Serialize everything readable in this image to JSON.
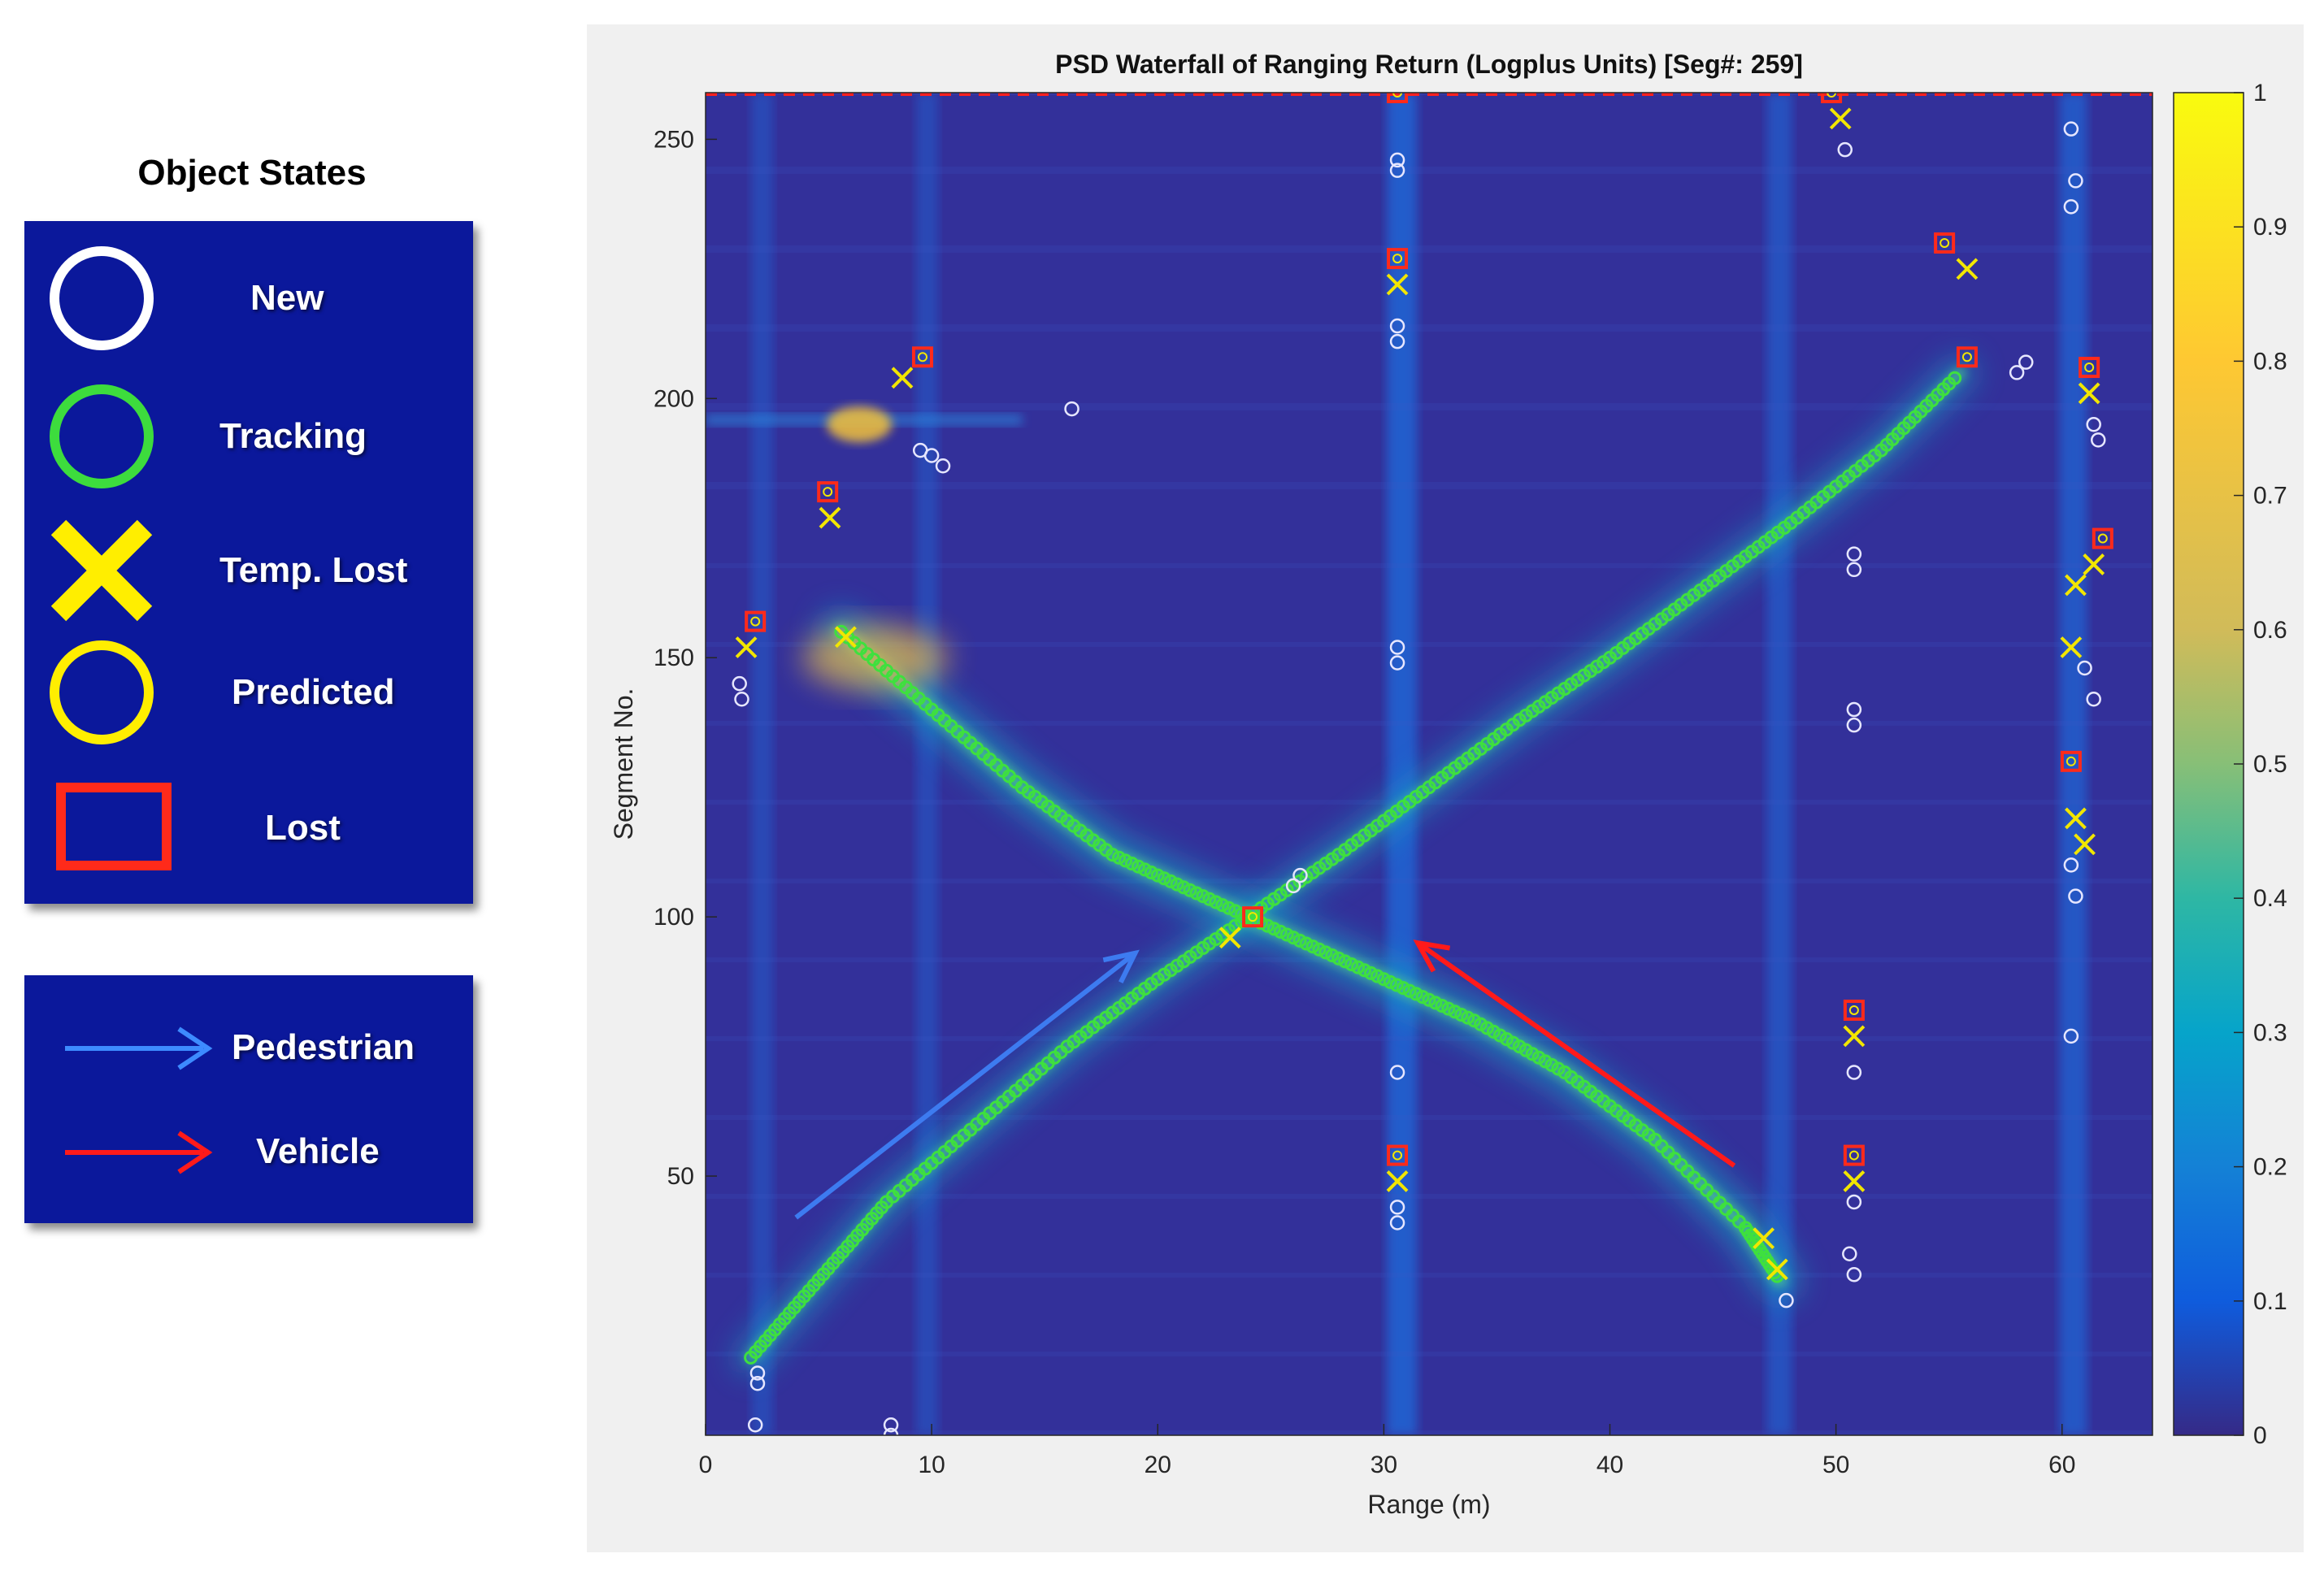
{
  "legend": {
    "title": "Object States",
    "states": [
      {
        "label": "New",
        "icon": "white-circle-icon",
        "color": "#ffffff"
      },
      {
        "label": "Tracking",
        "icon": "green-circle-icon",
        "color": "#3ddc3d"
      },
      {
        "label": "Temp. Lost",
        "icon": "yellow-x-icon",
        "color": "#ffee00"
      },
      {
        "label": "Predicted",
        "icon": "yellow-circle-icon",
        "color": "#ffee00"
      },
      {
        "label": "Lost",
        "icon": "red-square-icon",
        "color": "#ff2a1a"
      }
    ],
    "objects": [
      {
        "label": "Pedestrian",
        "icon": "blue-arrow-icon",
        "color": "#3d8bff"
      },
      {
        "label": "Vehicle",
        "icon": "red-arrow-icon",
        "color": "#ff1a1a"
      }
    ],
    "box_color": "#0b189b"
  },
  "chart_data": {
    "type": "heatmap",
    "title": "PSD Waterfall of Ranging Return (Logplus Units) [Seg#: 259]",
    "xlabel": "Range (m)",
    "ylabel": "Segment No.",
    "xlim": [
      0,
      64
    ],
    "ylim": [
      0,
      259
    ],
    "xticks": [
      0,
      10,
      20,
      30,
      40,
      50,
      60
    ],
    "yticks": [
      50,
      100,
      150,
      200,
      250
    ],
    "colorbar": {
      "colormap": "parula",
      "range": [
        0,
        1
      ],
      "ticks": [
        0,
        0.1,
        0.2,
        0.3,
        0.4,
        0.5,
        0.6,
        0.7,
        0.8,
        0.9,
        1
      ],
      "tick_labels": [
        "0",
        "0.1",
        "0.2",
        "0.3",
        "0.4",
        "0.5",
        "0.6",
        "0.7",
        "0.8",
        "0.9",
        "1"
      ]
    },
    "current_segment_line": {
      "y": 259,
      "color": "#ff2020",
      "style": "dashed"
    },
    "pedestrian_track": {
      "x": [
        2,
        5,
        8,
        12,
        16,
        20,
        24,
        28,
        32,
        36,
        40,
        44,
        48,
        52,
        55.5
      ],
      "y": [
        15,
        30,
        45,
        60,
        75,
        88,
        100,
        112,
        125,
        138,
        150,
        163,
        176,
        190,
        205
      ]
    },
    "vehicle_track": {
      "x": [
        6,
        10,
        14,
        18,
        22,
        26,
        30,
        34,
        38,
        42,
        46,
        47.5
      ],
      "y": [
        155,
        140,
        125,
        112,
        104,
        96,
        88,
        80,
        70,
        57,
        40,
        30
      ]
    },
    "vertical_bands": [
      {
        "x": 30.8,
        "intensity": 0.25
      },
      {
        "x": 47.5,
        "intensity": 0.15
      },
      {
        "x": 60.5,
        "intensity": 0.2
      },
      {
        "x": 9.8,
        "intensity": 0.08
      },
      {
        "x": 2.5,
        "intensity": 0.08
      }
    ],
    "annotations": [
      {
        "type": "arrow",
        "object": "Pedestrian",
        "from": [
          4,
          42
        ],
        "to": [
          19,
          93
        ],
        "color": "#3d7bf0"
      },
      {
        "type": "arrow",
        "object": "Vehicle",
        "from": [
          45.5,
          52
        ],
        "to": [
          31.5,
          95
        ],
        "color": "#ff1a1a"
      }
    ],
    "lost_markers": [
      [
        2.2,
        157
      ],
      [
        5.4,
        182
      ],
      [
        9.6,
        208
      ],
      [
        30.6,
        227
      ],
      [
        30.6,
        54
      ],
      [
        30.6,
        259
      ],
      [
        49.8,
        259
      ],
      [
        50.8,
        82
      ],
      [
        50.8,
        54
      ],
      [
        54.8,
        230
      ],
      [
        55.8,
        208
      ],
      [
        60.4,
        130
      ],
      [
        61.2,
        206
      ],
      [
        61.8,
        173
      ],
      [
        24.2,
        100
      ]
    ],
    "temp_lost_markers": [
      [
        1.8,
        152
      ],
      [
        5.5,
        177
      ],
      [
        8.7,
        204
      ],
      [
        6.2,
        154
      ],
      [
        30.6,
        222
      ],
      [
        30.6,
        49
      ],
      [
        50.2,
        254
      ],
      [
        50.8,
        77
      ],
      [
        50.8,
        49
      ],
      [
        55.8,
        225
      ],
      [
        61.2,
        201
      ],
      [
        61.4,
        168
      ],
      [
        60.6,
        164
      ],
      [
        60.4,
        152
      ],
      [
        60.6,
        119
      ],
      [
        61.0,
        114
      ],
      [
        23.2,
        96
      ],
      [
        46.8,
        38
      ],
      [
        47.4,
        32
      ]
    ],
    "new_markers": [
      [
        1.5,
        145
      ],
      [
        1.6,
        142
      ],
      [
        2.3,
        12
      ],
      [
        2.3,
        10
      ],
      [
        2.2,
        2
      ],
      [
        8.2,
        2
      ],
      [
        8.2,
        0
      ],
      [
        16.2,
        198
      ],
      [
        9.5,
        190
      ],
      [
        10.0,
        189
      ],
      [
        10.5,
        187
      ],
      [
        26.0,
        106
      ],
      [
        26.3,
        108
      ],
      [
        30.6,
        246
      ],
      [
        30.6,
        244
      ],
      [
        30.6,
        214
      ],
      [
        30.6,
        211
      ],
      [
        30.6,
        152
      ],
      [
        30.6,
        149
      ],
      [
        30.6,
        70
      ],
      [
        30.6,
        44
      ],
      [
        30.6,
        41
      ],
      [
        50.8,
        170
      ],
      [
        50.8,
        167
      ],
      [
        50.8,
        140
      ],
      [
        50.8,
        137
      ],
      [
        50.8,
        70
      ],
      [
        50.8,
        45
      ],
      [
        50.6,
        35
      ],
      [
        50.8,
        31
      ],
      [
        50.4,
        248
      ],
      [
        47.8,
        26
      ],
      [
        58.0,
        205
      ],
      [
        58.4,
        207
      ],
      [
        60.4,
        252
      ],
      [
        60.6,
        242
      ],
      [
        60.4,
        237
      ],
      [
        61.0,
        148
      ],
      [
        61.4,
        142
      ],
      [
        60.4,
        110
      ],
      [
        60.6,
        104
      ],
      [
        60.4,
        77
      ],
      [
        61.6,
        192
      ],
      [
        61.4,
        195
      ]
    ]
  }
}
